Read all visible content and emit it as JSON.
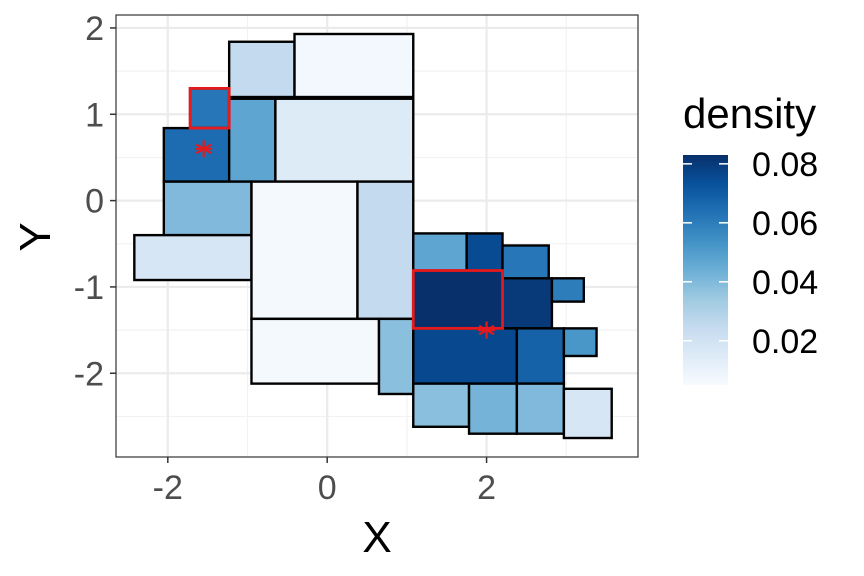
{
  "chart_data": {
    "type": "tile",
    "title": "",
    "xlabel": "X",
    "ylabel": "Y",
    "xlim": [
      -2.65,
      3.9
    ],
    "ylim": [
      -2.97,
      2.15
    ],
    "x_ticks": [
      -2,
      0,
      2
    ],
    "x_tick_labels": [
      "-2",
      "0",
      "2"
    ],
    "y_ticks": [
      2,
      1,
      0,
      -1,
      -2
    ],
    "y_tick_labels": [
      "2",
      "1",
      "0",
      "-1",
      "-2"
    ],
    "fill_variable": "density",
    "color_scale": {
      "min": 0.005,
      "max": 0.083,
      "low_color": "#f7fbff",
      "mid_color": "#6baed6",
      "high_color": "#08306b"
    },
    "legend": {
      "title": "density",
      "breaks": [
        0.08,
        0.06,
        0.04,
        0.02
      ],
      "labels": [
        "0.08",
        "0.06",
        "0.04",
        "0.02"
      ],
      "position": "right"
    },
    "tiles": [
      {
        "xmin": -1.23,
        "xmax": -0.41,
        "ymin": 1.2,
        "ymax": 1.84,
        "density": 0.025
      },
      {
        "xmin": -0.41,
        "xmax": 1.08,
        "ymin": 1.2,
        "ymax": 1.93,
        "density": 0.007
      },
      {
        "xmin": -1.72,
        "xmax": -1.23,
        "ymin": 0.84,
        "ymax": 1.3,
        "density": 0.062
      },
      {
        "xmin": -2.05,
        "xmax": -1.23,
        "ymin": 0.22,
        "ymax": 0.84,
        "density": 0.065
      },
      {
        "xmin": -1.23,
        "xmax": -0.65,
        "ymin": 0.22,
        "ymax": 1.18,
        "density": 0.047
      },
      {
        "xmin": -0.65,
        "xmax": 1.08,
        "ymin": 0.22,
        "ymax": 1.18,
        "density": 0.015
      },
      {
        "xmin": -2.05,
        "xmax": -0.95,
        "ymin": -0.4,
        "ymax": 0.22,
        "density": 0.04
      },
      {
        "xmin": -2.42,
        "xmax": -0.95,
        "ymin": -0.92,
        "ymax": -0.4,
        "density": 0.018
      },
      {
        "xmin": -0.95,
        "xmax": 0.38,
        "ymin": -1.37,
        "ymax": 0.22,
        "density": 0.006
      },
      {
        "xmin": 0.38,
        "xmax": 1.08,
        "ymin": -1.37,
        "ymax": 0.22,
        "density": 0.025
      },
      {
        "xmin": 1.08,
        "xmax": 1.75,
        "ymin": -0.92,
        "ymax": -0.38,
        "density": 0.047
      },
      {
        "xmin": 1.75,
        "xmax": 2.2,
        "ymin": -0.92,
        "ymax": -0.38,
        "density": 0.075
      },
      {
        "xmin": 2.2,
        "xmax": 2.78,
        "ymin": -0.92,
        "ymax": -0.52,
        "density": 0.062
      },
      {
        "xmin": 1.08,
        "xmax": 2.2,
        "ymin": -1.48,
        "ymax": -0.81,
        "density": 0.083
      },
      {
        "xmin": 2.2,
        "xmax": 2.82,
        "ymin": -1.48,
        "ymax": -0.9,
        "density": 0.08
      },
      {
        "xmin": 2.82,
        "xmax": 3.22,
        "ymin": -1.17,
        "ymax": -0.9,
        "density": 0.06
      },
      {
        "xmin": -0.95,
        "xmax": 0.65,
        "ymin": -2.12,
        "ymax": -1.37,
        "density": 0.006
      },
      {
        "xmin": 0.65,
        "xmax": 1.08,
        "ymin": -2.24,
        "ymax": -1.37,
        "density": 0.038
      },
      {
        "xmin": 1.08,
        "xmax": 2.38,
        "ymin": -2.12,
        "ymax": -1.48,
        "density": 0.076
      },
      {
        "xmin": 2.38,
        "xmax": 2.97,
        "ymin": -2.12,
        "ymax": -1.48,
        "density": 0.068
      },
      {
        "xmin": 2.97,
        "xmax": 3.38,
        "ymin": -1.8,
        "ymax": -1.48,
        "density": 0.052
      },
      {
        "xmin": 1.08,
        "xmax": 1.78,
        "ymin": -2.62,
        "ymax": -2.12,
        "density": 0.038
      },
      {
        "xmin": 1.78,
        "xmax": 2.38,
        "ymin": -2.7,
        "ymax": -2.12,
        "density": 0.042
      },
      {
        "xmin": 2.38,
        "xmax": 2.97,
        "ymin": -2.7,
        "ymax": -2.12,
        "density": 0.04
      },
      {
        "xmin": 2.97,
        "xmax": 3.57,
        "ymin": -2.75,
        "ymax": -2.18,
        "density": 0.018
      }
    ],
    "highlight_boxes": [
      {
        "xmin": -1.72,
        "xmax": -1.23,
        "ymin": 0.84,
        "ymax": 1.3,
        "color": "#e41a1c"
      },
      {
        "xmin": 1.08,
        "xmax": 2.2,
        "ymin": -1.48,
        "ymax": -0.81,
        "color": "#e41a1c"
      }
    ],
    "points": [
      {
        "x": -1.55,
        "y": 0.6,
        "color": "#e41a1c",
        "shape": "asterisk"
      },
      {
        "x": 2.0,
        "y": -1.5,
        "color": "#e41a1c",
        "shape": "asterisk"
      }
    ]
  }
}
